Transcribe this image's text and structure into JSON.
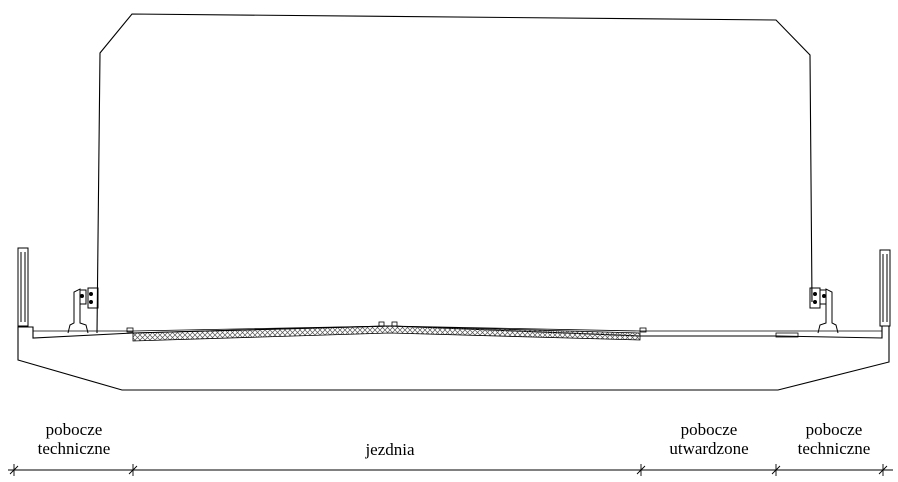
{
  "zones": [
    {
      "id": "left-technical",
      "lines": [
        "pobocze",
        "techniczne"
      ]
    },
    {
      "id": "roadway",
      "lines": [
        "jezdnia"
      ]
    },
    {
      "id": "paved-shoulder",
      "lines": [
        "pobocze",
        "utwardzone"
      ]
    },
    {
      "id": "right-technical",
      "lines": [
        "pobocze",
        "techniczne"
      ]
    }
  ],
  "colors": {
    "line": "#000000",
    "hatch": "#555555",
    "background": "#ffffff"
  }
}
